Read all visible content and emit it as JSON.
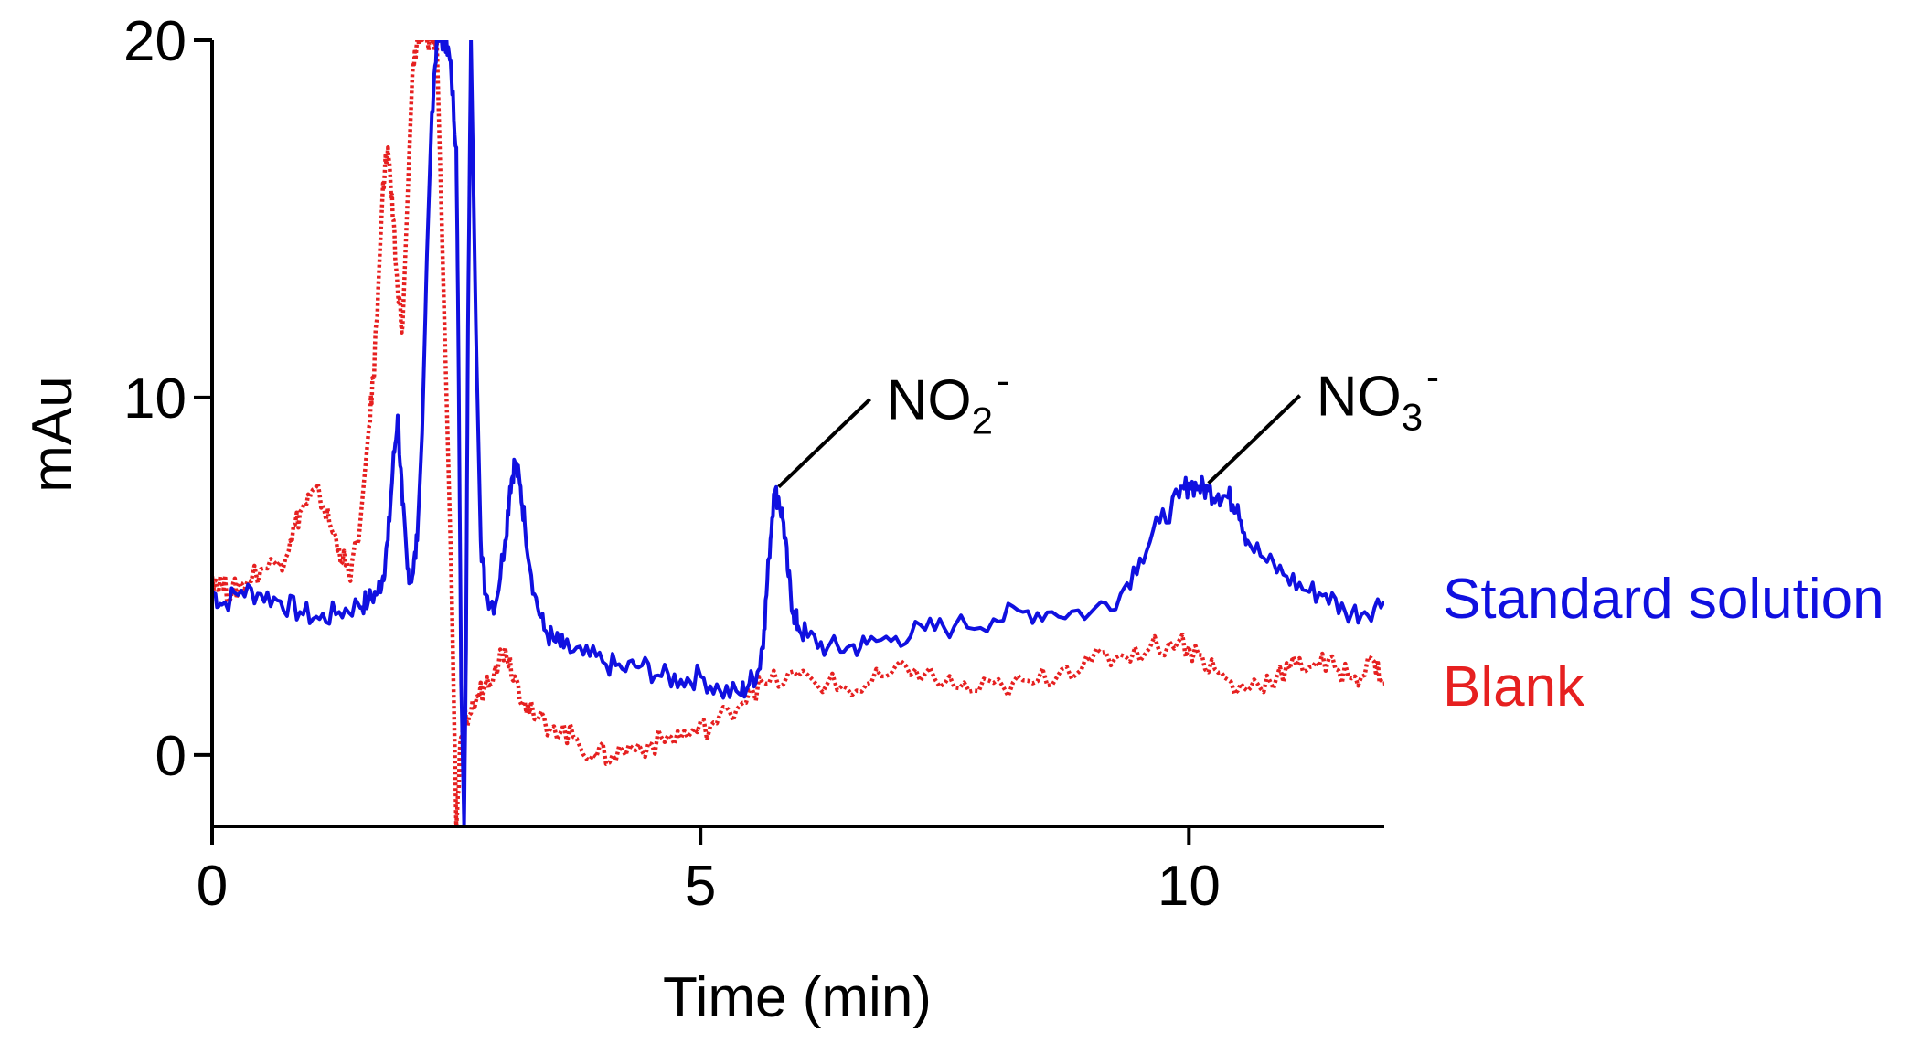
{
  "chart_data": {
    "type": "line",
    "title": "",
    "xlabel": "Time (min)",
    "ylabel": "mAu",
    "xlim": [
      0,
      12
    ],
    "ylim": [
      -2,
      20
    ],
    "xticks": [
      0,
      5,
      10
    ],
    "yticks": [
      0,
      10,
      20
    ],
    "grid": false,
    "series": [
      {
        "name": "Standard solution",
        "color": "#1010e0",
        "style": "solid",
        "x": [
          0,
          0.1,
          0.3,
          0.5,
          0.7,
          0.9,
          1.1,
          1.3,
          1.5,
          1.6,
          1.7,
          1.75,
          1.8,
          1.85,
          1.9,
          1.95,
          2.0,
          2.05,
          2.1,
          2.15,
          2.2,
          2.25,
          2.3,
          2.35,
          2.4,
          2.45,
          2.5,
          2.52,
          2.55,
          2.58,
          2.6,
          2.62,
          2.65,
          2.7,
          2.75,
          2.8,
          2.9,
          3.0,
          3.05,
          3.1,
          3.15,
          3.2,
          3.3,
          3.4,
          3.5,
          3.6,
          3.8,
          4.0,
          4.2,
          4.4,
          4.6,
          4.8,
          5.0,
          5.2,
          5.4,
          5.5,
          5.6,
          5.65,
          5.7,
          5.75,
          5.8,
          5.85,
          5.9,
          5.95,
          6.0,
          6.1,
          6.3,
          6.5,
          6.7,
          7.0,
          7.3,
          7.6,
          8.0,
          8.3,
          8.6,
          9.0,
          9.3,
          9.5,
          9.7,
          9.9,
          10.0,
          10.1,
          10.2,
          10.3,
          10.4,
          10.5,
          10.6,
          10.8,
          11.0,
          11.2,
          11.4,
          11.6,
          11.8,
          12.0
        ],
        "y": [
          4.6,
          4.2,
          4.6,
          4.5,
          4.3,
          4.0,
          3.8,
          4.0,
          4.2,
          4.3,
          4.6,
          5.0,
          6.0,
          8.0,
          9.5,
          7.0,
          5.2,
          5.0,
          6.0,
          9.0,
          14.0,
          18.0,
          20.0,
          20.0,
          20.0,
          19.0,
          17.0,
          12.0,
          2.0,
          -2.0,
          3.0,
          12.0,
          20.0,
          12.0,
          6.0,
          4.5,
          4.2,
          6.0,
          7.5,
          8.2,
          7.6,
          6.5,
          4.5,
          3.5,
          3.2,
          3.0,
          2.8,
          2.6,
          2.4,
          2.5,
          2.2,
          2.1,
          2.2,
          1.8,
          1.7,
          2.0,
          2.4,
          3.5,
          5.5,
          7.3,
          7.2,
          6.5,
          5.0,
          4.0,
          3.6,
          3.3,
          3.0,
          3.0,
          3.1,
          3.3,
          3.5,
          3.6,
          3.8,
          4.0,
          4.0,
          4.0,
          4.5,
          5.5,
          6.5,
          7.2,
          7.6,
          7.5,
          7.4,
          7.3,
          7.2,
          7.0,
          6.0,
          5.4,
          5.0,
          4.6,
          4.5,
          4.0,
          4.0,
          4.3
        ]
      },
      {
        "name": "Blank",
        "color": "#e62020",
        "style": "dotted",
        "x": [
          0,
          0.1,
          0.2,
          0.3,
          0.5,
          0.7,
          0.8,
          0.9,
          1.0,
          1.1,
          1.2,
          1.3,
          1.4,
          1.5,
          1.6,
          1.65,
          1.7,
          1.75,
          1.8,
          1.85,
          1.9,
          1.95,
          2.0,
          2.05,
          2.1,
          2.15,
          2.2,
          2.25,
          2.3,
          2.35,
          2.4,
          2.45,
          2.5,
          2.55,
          2.6,
          2.7,
          2.8,
          2.9,
          3.0,
          3.1,
          3.2,
          3.3,
          3.5,
          3.7,
          3.9,
          4.1,
          4.3,
          4.5,
          4.7,
          4.9,
          5.1,
          5.3,
          5.5,
          5.7,
          6.0,
          6.3,
          6.6,
          6.9,
          7.2,
          7.5,
          7.8,
          8.1,
          8.4,
          8.7,
          9.0,
          9.3,
          9.6,
          9.9,
          10.1,
          10.3,
          10.5,
          10.7,
          10.9,
          11.1,
          11.3,
          11.5,
          11.7,
          11.9,
          12.0
        ],
        "y": [
          5.0,
          4.8,
          4.5,
          4.8,
          5.2,
          5.4,
          6.0,
          6.8,
          7.2,
          7.3,
          6.5,
          5.8,
          5.0,
          6.0,
          9.0,
          10.5,
          13.0,
          16.0,
          17.0,
          15.0,
          13.0,
          12.0,
          15.5,
          19.0,
          20.0,
          20.0,
          20.0,
          20.0,
          20.0,
          15.0,
          10.0,
          5.0,
          -2.0,
          0.5,
          1.0,
          1.5,
          2.0,
          2.5,
          3.0,
          2.2,
          1.5,
          1.0,
          0.8,
          0.5,
          0.0,
          0.0,
          0.2,
          0.3,
          0.5,
          0.6,
          0.8,
          1.2,
          1.8,
          2.0,
          2.2,
          2.0,
          1.8,
          2.2,
          2.4,
          2.0,
          1.8,
          1.9,
          2.0,
          2.4,
          2.6,
          2.8,
          3.0,
          3.2,
          2.8,
          2.3,
          1.8,
          2.0,
          2.2,
          2.5,
          2.6,
          2.4,
          2.2,
          2.6,
          2.0
        ]
      }
    ],
    "annotations": [
      {
        "label": "NO",
        "sub": "2",
        "sup": "-",
        "target": [
          5.8,
          7.5
        ]
      },
      {
        "label": "NO",
        "sub": "3",
        "sup": "-",
        "target": [
          10.2,
          7.6
        ]
      }
    ]
  }
}
